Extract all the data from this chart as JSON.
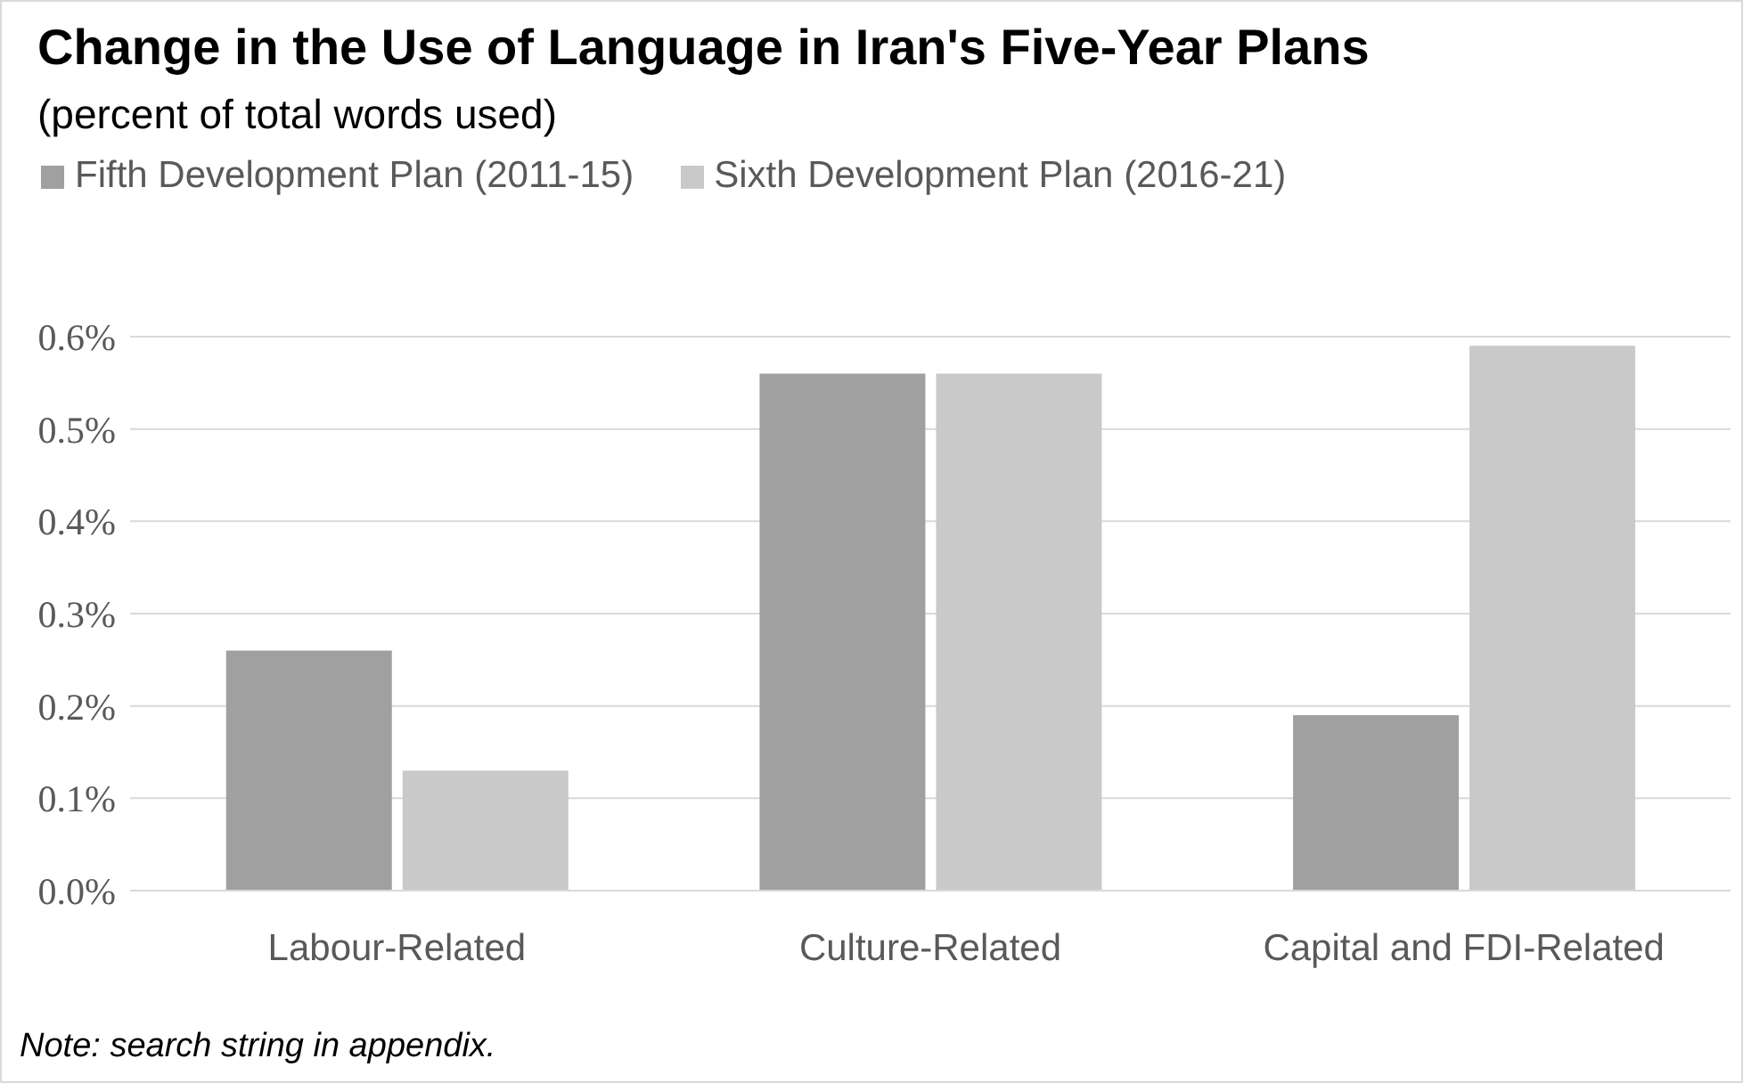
{
  "chart_data": {
    "type": "bar",
    "title": "Change in the Use of Language in Iran's Five-Year Plans",
    "subtitle": "(percent of total words used)",
    "categories": [
      "Labour-Related",
      "Culture-Related",
      "Capital and FDI-Related"
    ],
    "series": [
      {
        "name": "Fifth Development Plan (2011-15)",
        "color": "#a0a0a0",
        "values": [
          0.26,
          0.56,
          0.19
        ]
      },
      {
        "name": "Sixth Development Plan (2016-21)",
        "color": "#c9c9c9",
        "values": [
          0.13,
          0.56,
          0.59
        ]
      }
    ],
    "ylim": [
      0,
      0.6
    ],
    "yticks": [
      {
        "value": 0,
        "label": "0.0%"
      },
      {
        "value": 0.1,
        "label": "0.1%"
      },
      {
        "value": 0.2,
        "label": "0.2%"
      },
      {
        "value": 0.3,
        "label": "0.3%"
      },
      {
        "value": 0.4,
        "label": "0.4%"
      },
      {
        "value": 0.5,
        "label": "0.5%"
      },
      {
        "value": 0.6,
        "label": "0.6%"
      }
    ],
    "grid": "y",
    "legend": "top left",
    "annotations": [
      "Note: search string in appendix."
    ]
  }
}
